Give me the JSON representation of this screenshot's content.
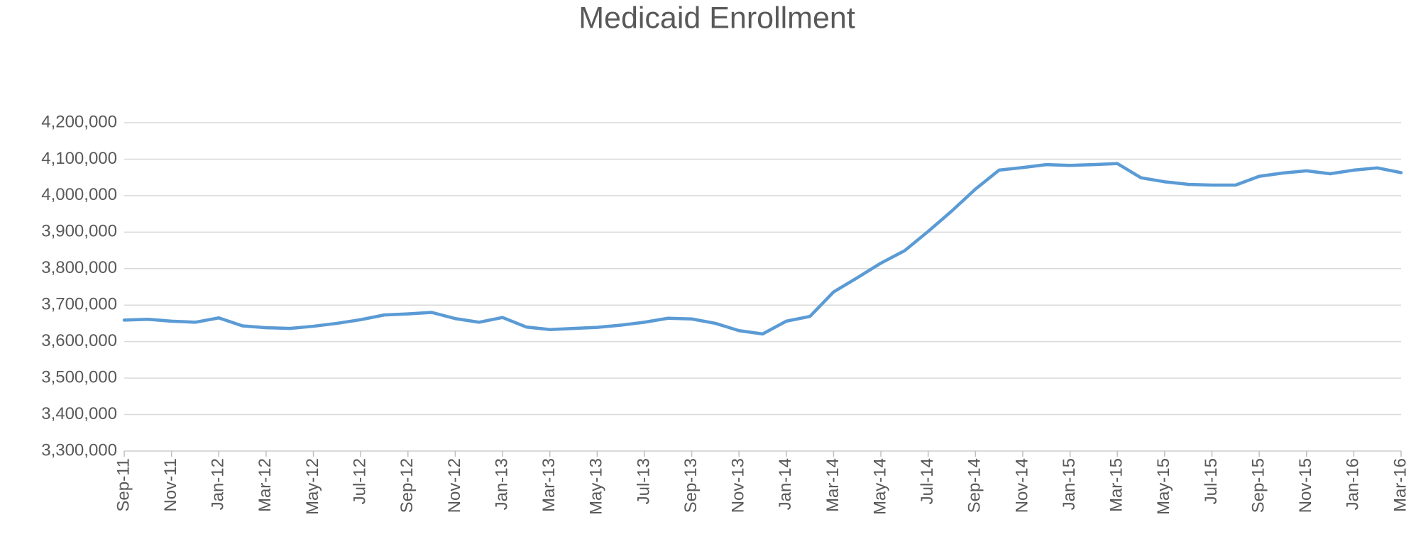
{
  "chart_data": {
    "type": "line",
    "title": "Medicaid Enrollment",
    "categories": [
      "Sep-11",
      null,
      "Nov-11",
      null,
      "Jan-12",
      null,
      "Mar-12",
      null,
      "May-12",
      null,
      "Jul-12",
      null,
      "Sep-12",
      null,
      "Nov-12",
      null,
      "Jan-13",
      null,
      "Mar-13",
      null,
      "May-13",
      null,
      "Jul-13",
      null,
      "Sep-13",
      null,
      "Nov-13",
      null,
      "Jan-14",
      null,
      "Mar-14",
      null,
      "May-14",
      null,
      "Jul-14",
      null,
      "Sep-14",
      null,
      "Nov-14",
      null,
      "Jan-15",
      null,
      "Mar-15",
      null,
      "May-15",
      null,
      "Jul-15",
      null,
      "Sep-15",
      null,
      "Nov-15",
      null,
      "Jan-16",
      null,
      "Mar-16"
    ],
    "series": [
      {
        "name": "Medicaid Enrollment",
        "color": "#5b9bd5",
        "values": [
          3659000,
          3661000,
          3656000,
          3653000,
          3665000,
          3643000,
          3638000,
          3636000,
          3642000,
          3650000,
          3660000,
          3673000,
          3676000,
          3680000,
          3663000,
          3653000,
          3666000,
          3640000,
          3633000,
          3636000,
          3639000,
          3645000,
          3653000,
          3664000,
          3662000,
          3650000,
          3630000,
          3621000,
          3656000,
          3669000,
          3736000,
          3775000,
          3815000,
          3849000,
          3902000,
          3958000,
          4018000,
          4070000,
          4077000,
          4085000,
          4083000,
          4085000,
          4088000,
          4049000,
          4038000,
          4031000,
          4029000,
          4029000,
          4053000,
          4062000,
          4068000,
          4060000,
          4070000,
          4076000,
          4063000
        ]
      }
    ],
    "ylim": [
      3300000,
      4200000
    ],
    "yticks": [
      {
        "value": 3300000,
        "label": "3,300,000"
      },
      {
        "value": 3400000,
        "label": "3,400,000"
      },
      {
        "value": 3500000,
        "label": "3,500,000"
      },
      {
        "value": 3600000,
        "label": "3,600,000"
      },
      {
        "value": 3700000,
        "label": "3,700,000"
      },
      {
        "value": 3800000,
        "label": "3,800,000"
      },
      {
        "value": 3900000,
        "label": "3,900,000"
      },
      {
        "value": 4000000,
        "label": "4,000,000"
      },
      {
        "value": 4100000,
        "label": "4,100,000"
      },
      {
        "value": 4200000,
        "label": "4,200,000"
      }
    ],
    "grid": true
  }
}
